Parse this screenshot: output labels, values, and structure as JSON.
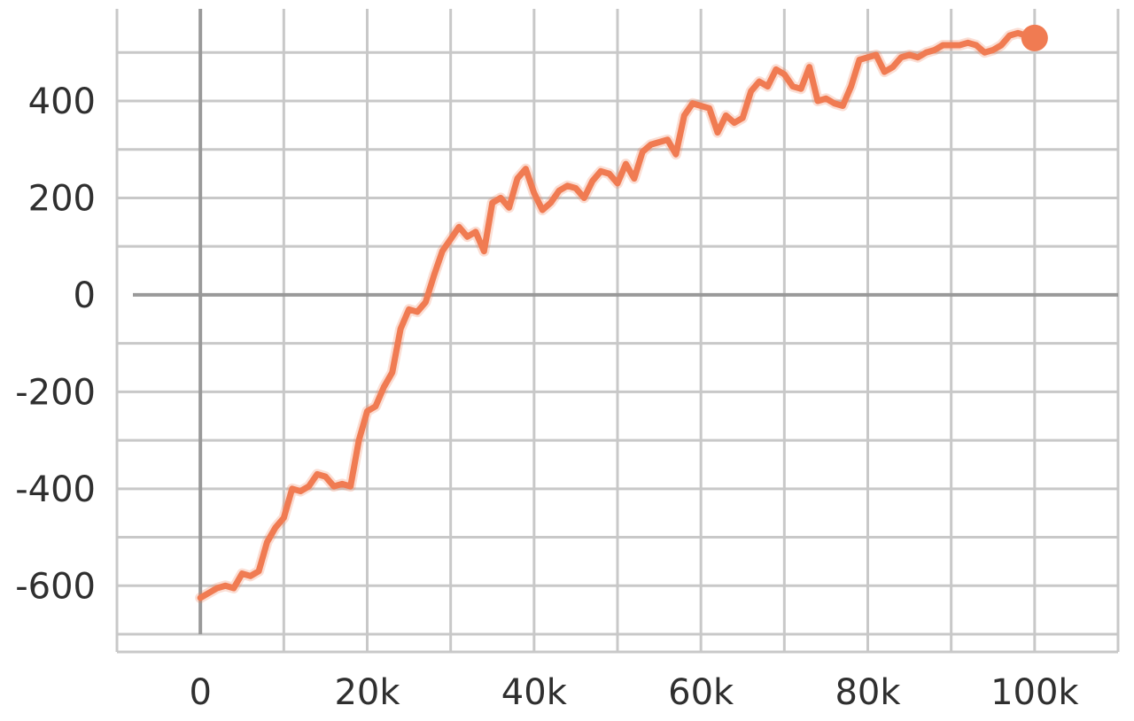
{
  "chart_data": {
    "type": "line",
    "title": "",
    "xlabel": "",
    "ylabel": "",
    "xlim": [
      -10000,
      110000
    ],
    "ylim": [
      -700,
      590
    ],
    "grid": true,
    "x_ticks": [
      0,
      20000,
      40000,
      60000,
      80000,
      100000
    ],
    "x_tick_labels": [
      "0",
      "20k",
      "40k",
      "60k",
      "80k",
      "100k"
    ],
    "y_ticks": [
      -600,
      -400,
      -200,
      0,
      200,
      400
    ],
    "y_tick_labels": [
      "-600",
      "-400",
      "-200",
      "0",
      "200",
      "400"
    ],
    "line_color": "#f07b52",
    "series": [
      {
        "x": [
          0,
          1000,
          2000,
          3000,
          4000,
          5000,
          6000,
          7000,
          8000,
          9000,
          10000,
          11000,
          12000,
          13000,
          14000,
          15000,
          16000,
          17000,
          18000,
          19000,
          20000,
          21000,
          22000,
          23000,
          24000,
          25000,
          26000,
          27000,
          28000,
          29000,
          30000,
          31000,
          32000,
          33000,
          34000,
          35000,
          36000,
          37000,
          38000,
          39000,
          40000,
          41000,
          42000,
          43000,
          44000,
          45000,
          46000,
          47000,
          48000,
          49000,
          50000,
          51000,
          52000,
          53000,
          54000,
          55000,
          56000,
          57000,
          58000,
          59000,
          60000,
          61000,
          62000,
          63000,
          64000,
          65000,
          66000,
          67000,
          68000,
          69000,
          70000,
          71000,
          72000,
          73000,
          74000,
          75000,
          76000,
          77000,
          78000,
          79000,
          80000,
          81000,
          82000,
          83000,
          84000,
          85000,
          86000,
          87000,
          88000,
          89000,
          90000,
          91000,
          92000,
          93000,
          94000,
          95000,
          96000,
          97000,
          98000,
          99000,
          100000
        ],
        "values": [
          -625,
          -615,
          -605,
          -600,
          -605,
          -575,
          -580,
          -570,
          -510,
          -480,
          -460,
          -400,
          -405,
          -395,
          -370,
          -375,
          -395,
          -390,
          -395,
          -300,
          -240,
          -230,
          -190,
          -160,
          -70,
          -30,
          -35,
          -15,
          40,
          90,
          115,
          140,
          120,
          130,
          90,
          190,
          200,
          180,
          240,
          260,
          210,
          175,
          190,
          215,
          225,
          220,
          200,
          235,
          255,
          250,
          230,
          270,
          240,
          295,
          310,
          315,
          320,
          290,
          370,
          395,
          390,
          385,
          335,
          370,
          355,
          365,
          420,
          440,
          430,
          465,
          455,
          430,
          425,
          470,
          400,
          405,
          395,
          390,
          430,
          485,
          490,
          495,
          460,
          470,
          490,
          495,
          490,
          500,
          505,
          515,
          515,
          515,
          520,
          515,
          500,
          505,
          515,
          535,
          540,
          535,
          530
        ]
      }
    ]
  }
}
